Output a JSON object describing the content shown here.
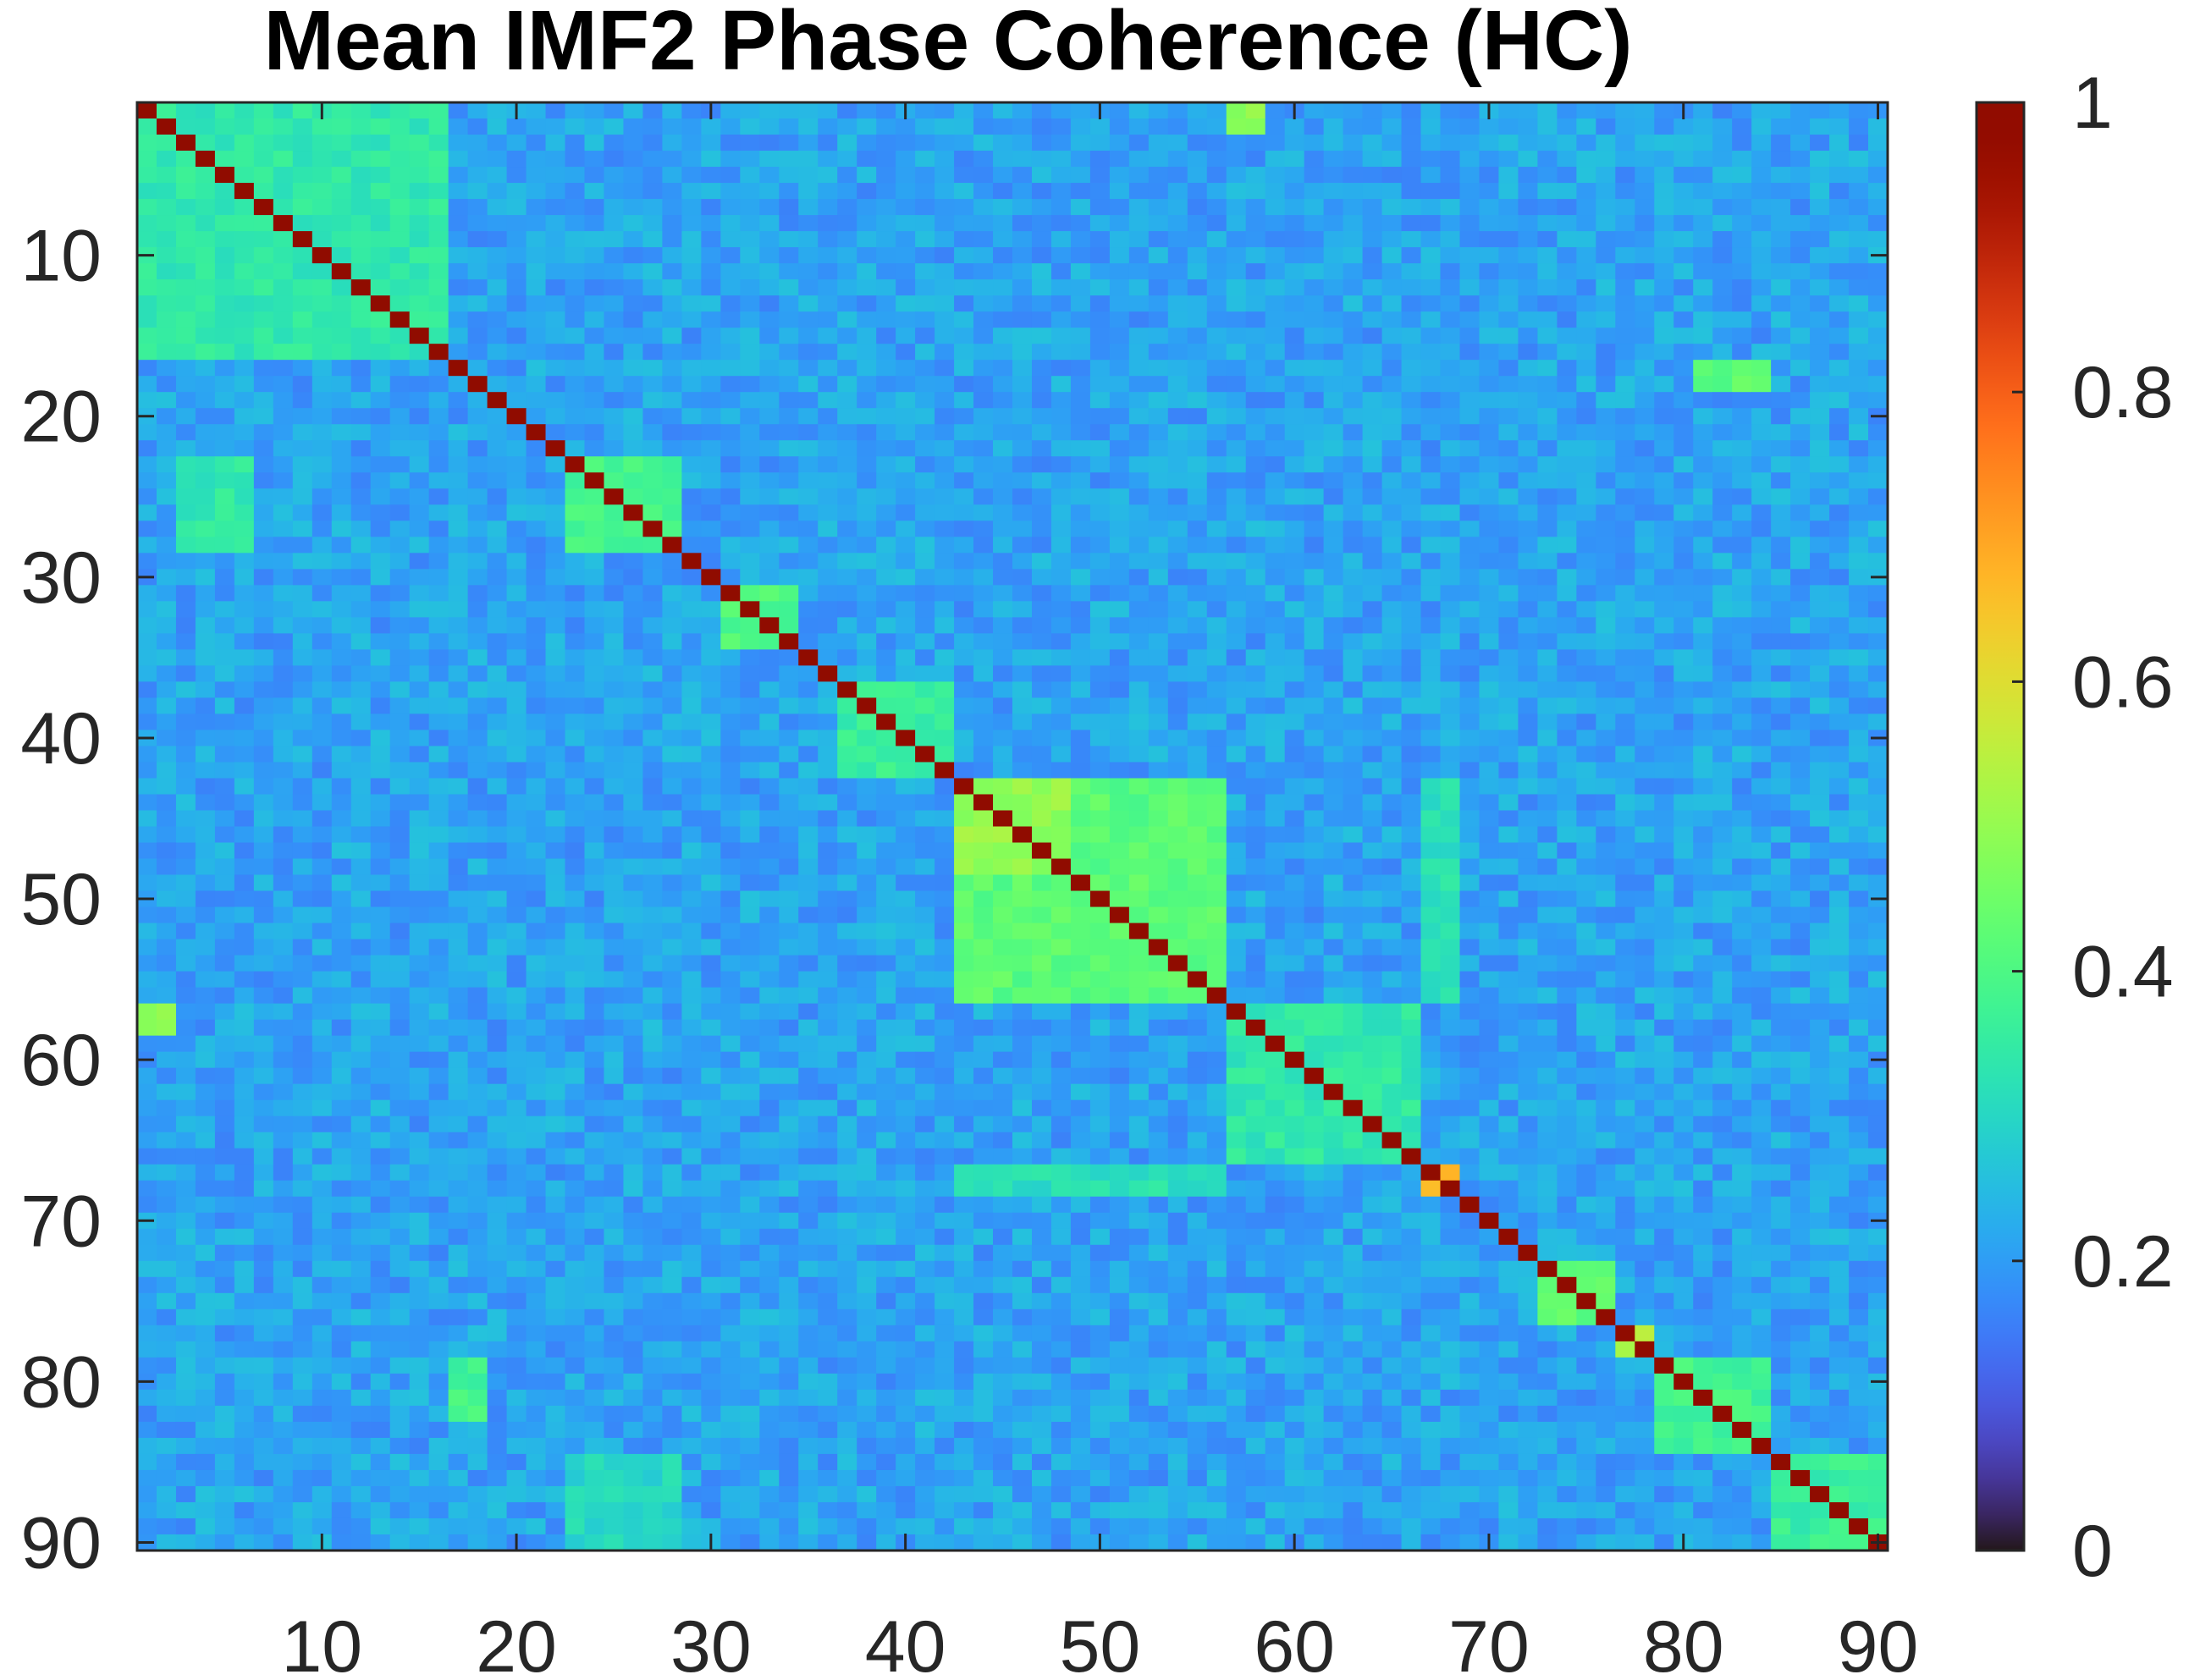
{
  "chart_data": {
    "type": "heatmap",
    "title": "Mean IMF2 Phase Coherence (HC)",
    "xlabel": "",
    "ylabel": "",
    "n": 90,
    "xlim": [
      0.5,
      90.5
    ],
    "ylim": [
      0.5,
      90.5
    ],
    "x_ticks": [
      10,
      20,
      30,
      40,
      50,
      60,
      70,
      80,
      90
    ],
    "y_ticks": [
      10,
      20,
      30,
      40,
      50,
      60,
      70,
      80,
      90
    ],
    "x_tick_labels": [
      "10",
      "20",
      "30",
      "40",
      "50",
      "60",
      "70",
      "80",
      "90"
    ],
    "y_tick_labels": [
      "10",
      "20",
      "30",
      "40",
      "50",
      "60",
      "70",
      "80",
      "90"
    ],
    "clim": [
      0,
      1
    ],
    "colorbar": {
      "ticks": [
        0,
        0.2,
        0.4,
        0.6,
        0.8,
        1
      ],
      "tick_labels": [
        "0",
        "0.2",
        "0.4",
        "0.6",
        "0.8",
        "1"
      ],
      "colormap": "turbo",
      "location": "right"
    },
    "diagonal_value": 1.0,
    "background_value": 0.21,
    "grid": false,
    "high_coherence_blocks": [
      {
        "rows": [
          1,
          16
        ],
        "cols": [
          1,
          16
        ],
        "value": 0.34
      },
      {
        "rows": [
          23,
          28
        ],
        "cols": [
          23,
          28
        ],
        "value": 0.38
      },
      {
        "rows": [
          31,
          34
        ],
        "cols": [
          31,
          34
        ],
        "value": 0.4
      },
      {
        "rows": [
          37,
          42
        ],
        "cols": [
          37,
          42
        ],
        "value": 0.36
      },
      {
        "rows": [
          43,
          56
        ],
        "cols": [
          43,
          56
        ],
        "value": 0.42
      },
      {
        "rows": [
          43,
          48
        ],
        "cols": [
          43,
          48
        ],
        "value": 0.5
      },
      {
        "rows": [
          57,
          58
        ],
        "cols": [
          1,
          2
        ],
        "value": 0.5
      },
      {
        "rows": [
          57,
          66
        ],
        "cols": [
          57,
          66
        ],
        "value": 0.34
      },
      {
        "rows": [
          67,
          68
        ],
        "cols": [
          67,
          68
        ],
        "value": 0.68
      },
      {
        "rows": [
          73,
          76
        ],
        "cols": [
          73,
          76
        ],
        "value": 0.42
      },
      {
        "rows": [
          77,
          78
        ],
        "cols": [
          77,
          78
        ],
        "value": 0.55
      },
      {
        "rows": [
          79,
          84
        ],
        "cols": [
          79,
          84
        ],
        "value": 0.38
      },
      {
        "rows": [
          85,
          90
        ],
        "cols": [
          85,
          90
        ],
        "value": 0.36
      },
      {
        "rows": [
          23,
          28
        ],
        "cols": [
          3,
          6
        ],
        "value": 0.34
      },
      {
        "rows": [
          17,
          18
        ],
        "cols": [
          81,
          84
        ],
        "value": 0.42
      },
      {
        "rows": [
          1,
          2
        ],
        "cols": [
          57,
          58
        ],
        "value": 0.48
      },
      {
        "rows": [
          79,
          82
        ],
        "cols": [
          17,
          18
        ],
        "value": 0.38
      },
      {
        "rows": [
          43,
          56
        ],
        "cols": [
          67,
          68
        ],
        "value": 0.32
      },
      {
        "rows": [
          67,
          68
        ],
        "cols": [
          43,
          56
        ],
        "value": 0.32
      },
      {
        "rows": [
          85,
          90
        ],
        "cols": [
          23,
          28
        ],
        "value": 0.3
      }
    ]
  }
}
